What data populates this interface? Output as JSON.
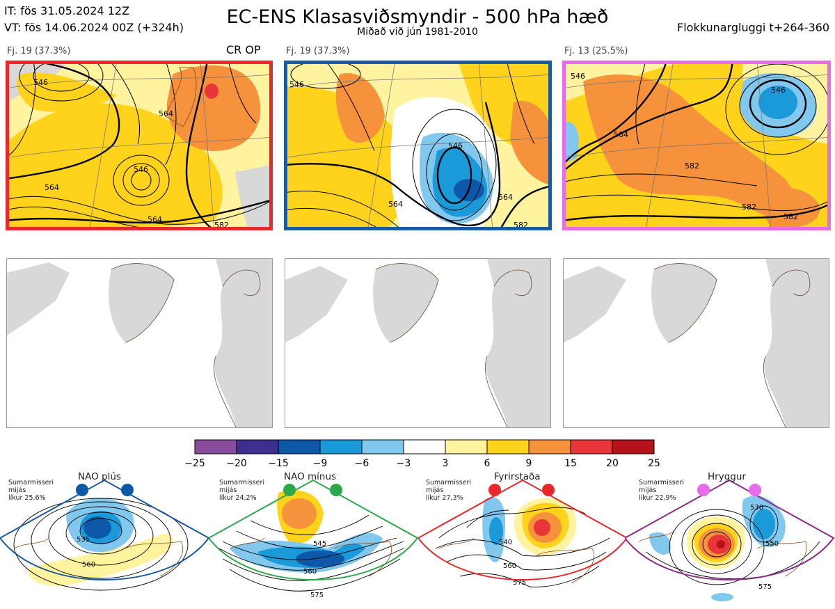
{
  "header": {
    "it_label": "IT: fös 31.05.2024 12Z",
    "vt_label": "VT: fös 14.06.2024 00Z  (+324h)",
    "title": "EC-ENS Klasasviðsmyndir - 500 hPa hæð",
    "subtitle": "Miðað við jún 1981-2010",
    "window_label": "Flokkunargluggi t+264-360"
  },
  "panels": [
    {
      "count_label": "Fj. 19 (37.3%)",
      "tag": "CR OP",
      "border_color": "#e8292b",
      "contour_labels": [
        "546",
        "546",
        "564",
        "564",
        "564",
        "582"
      ]
    },
    {
      "count_label": "Fj. 19 (37.3%)",
      "tag": "",
      "border_color": "#1a5aa0",
      "contour_labels": [
        "546",
        "546",
        "564",
        "564",
        "582"
      ]
    },
    {
      "count_label": "Fj. 13 (25.5%)",
      "tag": "",
      "border_color": "#e86be8",
      "contour_labels": [
        "546",
        "546",
        "564",
        "582",
        "582",
        "582"
      ]
    }
  ],
  "colorbar": {
    "ticks": [
      "−25",
      "−20",
      "−15",
      "−9",
      "−6",
      "−3",
      "3",
      "6",
      "9",
      "15",
      "20",
      "25"
    ],
    "colors": [
      "#8a4c9c",
      "#3e2f8e",
      "#0d58a8",
      "#1a9ad9",
      "#82c8ee",
      "#ffffff",
      "#fff3a0",
      "#ffd21c",
      "#f6923c",
      "#e8353a",
      "#b5121b"
    ]
  },
  "regimes": [
    {
      "name": "NAO plús",
      "prob_text": "Sumarmisseri\nmijás\nlíkur 25,6%",
      "frame_color": "#1a5aa0",
      "dot_color": "#0d58a8",
      "contour_labels": [
        "535",
        "560"
      ]
    },
    {
      "name": "NAO mínus",
      "prob_text": "Sumarmisseri\nmijás\nlíkur 24,2%",
      "frame_color": "#2aa84a",
      "dot_color": "#2aa84a",
      "contour_labels": [
        "545",
        "560",
        "575"
      ]
    },
    {
      "name": "Fyrirstaða",
      "prob_text": "Sumarmisseri\nmijás\nlíkur 27,3%",
      "frame_color": "#e8292b",
      "dot_color": "#e8292b",
      "contour_labels": [
        "540",
        "560",
        "575"
      ]
    },
    {
      "name": "Hryggur",
      "prob_text": "Sumarmisseri\nmijás\nlíkur 22,9%",
      "frame_color": "#8a2a8a",
      "dot_color": "#e86be8",
      "contour_labels": [
        "530",
        "550",
        "575"
      ]
    }
  ]
}
